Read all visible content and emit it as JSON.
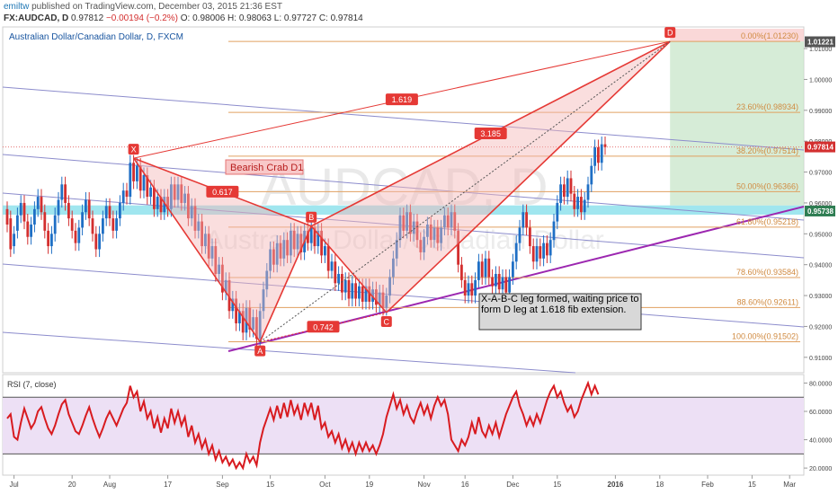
{
  "header": {
    "author": "emiltw",
    "published_text": "published on TradingView.com, December 03, 2015 21:36 EST",
    "symbol": "FX:AUDCAD, D",
    "last": "0.97812",
    "change": "−0.00194 (−0.2%)",
    "open": "O: 0.98006",
    "high": "H: 0.98063",
    "low": "L: 0.97727",
    "close": "C: 0.97814"
  },
  "colors": {
    "pattern": "#e53935",
    "fib": "#e0a060",
    "channel": "#8c8ccc",
    "trendline": "#9c27b0",
    "zone": "#80deea",
    "rsi": "#d81b20",
    "up_candle": "#1f6fc5",
    "down_candle": "#d32f2f"
  },
  "chart_data": [
    {
      "type": "candlestick",
      "title": "Australian Dollar/Canadian Dollar, D, FXCM",
      "watermark_symbol": "AUDCAD, D",
      "watermark_name": "Australian Dollar/Canadian Dollar",
      "ylim": [
        0.905,
        1.017
      ],
      "yticks": [
        "1.01000",
        "1.00000",
        "0.99000",
        "0.98000",
        "0.97000",
        "0.96000",
        "0.95000",
        "0.94000",
        "0.93000",
        "0.92000",
        "0.91000"
      ],
      "price_tags": [
        {
          "label": "1.01221",
          "value": 1.0122,
          "bg": "#555555"
        },
        {
          "label": "0.97814",
          "value": 0.97814,
          "bg": "#d32f2f"
        },
        {
          "label": "0.95738",
          "value": 0.95738,
          "bg": "#2e7d52"
        }
      ],
      "fib_levels": [
        {
          "label": "0.00%(1.01230)",
          "value": 1.0123
        },
        {
          "label": "23.60%(0.98934)",
          "value": 0.98934
        },
        {
          "label": "38.20%(0.97514)",
          "value": 0.97514
        },
        {
          "label": "50.00%(0.96366)",
          "value": 0.96366
        },
        {
          "label": "61.80%(0.95218)",
          "value": 0.95218
        },
        {
          "label": "78.60%(0.93584)",
          "value": 0.93584
        },
        {
          "label": "88.60%(0.92611)",
          "value": 0.92611
        },
        {
          "label": "100.00%(0.91502)",
          "value": 0.91502
        }
      ],
      "pattern_points": [
        {
          "label": "X",
          "day": 37,
          "value": 0.9745
        },
        {
          "label": "A",
          "day": 74,
          "value": 0.915
        },
        {
          "label": "B",
          "day": 89,
          "value": 0.9525
        },
        {
          "label": "C",
          "day": 111,
          "value": 0.9245
        },
        {
          "label": "D",
          "day": 194,
          "value": 1.0123
        }
      ],
      "ratio_labels": [
        "0.617",
        "0.742",
        "1.619",
        "3.185"
      ],
      "pattern_name": "Bearish Crab D1",
      "annotation": "X-A-B-C leg formed, waiting price to form D leg at 1.618 fib extension.",
      "support_zone": [
        0.9562,
        0.9592
      ],
      "candles": [
        [
          0.958,
          0.953
        ],
        [
          0.955,
          0.945
        ],
        [
          0.946,
          0.95
        ],
        [
          0.951,
          0.956
        ],
        [
          0.956,
          0.96
        ],
        [
          0.96,
          0.954
        ],
        [
          0.954,
          0.949
        ],
        [
          0.949,
          0.953
        ],
        [
          0.953,
          0.958
        ],
        [
          0.958,
          0.962
        ],
        [
          0.962,
          0.957
        ],
        [
          0.957,
          0.951
        ],
        [
          0.951,
          0.946
        ],
        [
          0.946,
          0.95
        ],
        [
          0.95,
          0.956
        ],
        [
          0.956,
          0.961
        ],
        [
          0.961,
          0.966
        ],
        [
          0.966,
          0.96
        ],
        [
          0.96,
          0.955
        ],
        [
          0.955,
          0.951
        ],
        [
          0.951,
          0.947
        ],
        [
          0.947,
          0.952
        ],
        [
          0.952,
          0.957
        ],
        [
          0.957,
          0.961
        ],
        [
          0.961,
          0.955
        ],
        [
          0.955,
          0.95
        ],
        [
          0.95,
          0.945
        ],
        [
          0.945,
          0.95
        ],
        [
          0.95,
          0.955
        ],
        [
          0.955,
          0.959
        ],
        [
          0.959,
          0.955
        ],
        [
          0.955,
          0.951
        ],
        [
          0.951,
          0.955
        ],
        [
          0.955,
          0.96
        ],
        [
          0.96,
          0.964
        ],
        [
          0.964,
          0.962
        ],
        [
          0.962,
          0.973
        ],
        [
          0.973,
          0.967
        ],
        [
          0.967,
          0.972
        ],
        [
          0.972,
          0.964
        ],
        [
          0.964,
          0.969
        ],
        [
          0.969,
          0.962
        ],
        [
          0.962,
          0.965
        ],
        [
          0.965,
          0.958
        ],
        [
          0.958,
          0.962
        ],
        [
          0.962,
          0.957
        ],
        [
          0.957,
          0.962
        ],
        [
          0.962,
          0.958
        ],
        [
          0.958,
          0.966
        ],
        [
          0.966,
          0.961
        ],
        [
          0.961,
          0.966
        ],
        [
          0.966,
          0.96
        ],
        [
          0.96,
          0.963
        ],
        [
          0.963,
          0.955
        ],
        [
          0.955,
          0.959
        ],
        [
          0.959,
          0.951
        ],
        [
          0.951,
          0.954
        ],
        [
          0.954,
          0.946
        ],
        [
          0.946,
          0.95
        ],
        [
          0.95,
          0.942
        ],
        [
          0.942,
          0.946
        ],
        [
          0.946,
          0.937
        ],
        [
          0.937,
          0.94
        ],
        [
          0.94,
          0.931
        ],
        [
          0.931,
          0.935
        ],
        [
          0.935,
          0.925
        ],
        [
          0.925,
          0.929
        ],
        [
          0.929,
          0.921
        ],
        [
          0.921,
          0.925
        ],
        [
          0.925,
          0.918
        ],
        [
          0.918,
          0.926
        ],
        [
          0.926,
          0.919
        ],
        [
          0.919,
          0.923
        ],
        [
          0.923,
          0.916
        ],
        [
          0.916,
          0.925
        ],
        [
          0.925,
          0.932
        ],
        [
          0.932,
          0.938
        ],
        [
          0.938,
          0.945
        ],
        [
          0.945,
          0.94
        ],
        [
          0.94,
          0.947
        ],
        [
          0.947,
          0.942
        ],
        [
          0.942,
          0.948
        ],
        [
          0.948,
          0.943
        ],
        [
          0.943,
          0.951
        ],
        [
          0.951,
          0.945
        ],
        [
          0.945,
          0.95
        ],
        [
          0.95,
          0.944
        ],
        [
          0.944,
          0.951
        ],
        [
          0.951,
          0.947
        ],
        [
          0.947,
          0.952
        ],
        [
          0.952,
          0.946
        ],
        [
          0.946,
          0.951
        ],
        [
          0.951,
          0.943
        ],
        [
          0.943,
          0.946
        ],
        [
          0.946,
          0.938
        ],
        [
          0.938,
          0.941
        ],
        [
          0.941,
          0.934
        ],
        [
          0.934,
          0.937
        ],
        [
          0.937,
          0.931
        ],
        [
          0.931,
          0.935
        ],
        [
          0.935,
          0.929
        ],
        [
          0.929,
          0.934
        ],
        [
          0.934,
          0.929
        ],
        [
          0.929,
          0.933
        ],
        [
          0.933,
          0.928
        ],
        [
          0.928,
          0.933
        ],
        [
          0.933,
          0.928
        ],
        [
          0.928,
          0.932
        ],
        [
          0.932,
          0.927
        ],
        [
          0.927,
          0.931
        ],
        [
          0.931,
          0.926
        ],
        [
          0.926,
          0.93
        ],
        [
          0.93,
          0.936
        ],
        [
          0.936,
          0.942
        ],
        [
          0.942,
          0.948
        ],
        [
          0.948,
          0.956
        ],
        [
          0.956,
          0.951
        ],
        [
          0.951,
          0.957
        ],
        [
          0.957,
          0.95
        ],
        [
          0.95,
          0.954
        ],
        [
          0.954,
          0.948
        ],
        [
          0.948,
          0.944
        ],
        [
          0.944,
          0.949
        ],
        [
          0.949,
          0.953
        ],
        [
          0.953,
          0.948
        ],
        [
          0.948,
          0.952
        ],
        [
          0.952,
          0.947
        ],
        [
          0.947,
          0.952
        ],
        [
          0.952,
          0.956
        ],
        [
          0.956,
          0.952
        ],
        [
          0.952,
          0.957
        ],
        [
          0.957,
          0.951
        ],
        [
          0.951,
          0.94
        ],
        [
          0.94,
          0.935
        ],
        [
          0.935,
          0.93
        ],
        [
          0.93,
          0.934
        ],
        [
          0.934,
          0.93
        ],
        [
          0.93,
          0.935
        ],
        [
          0.935,
          0.941
        ],
        [
          0.941,
          0.936
        ],
        [
          0.936,
          0.942
        ],
        [
          0.942,
          0.936
        ],
        [
          0.936,
          0.933
        ],
        [
          0.933,
          0.937
        ],
        [
          0.937,
          0.932
        ],
        [
          0.932,
          0.936
        ],
        [
          0.936,
          0.931
        ],
        [
          0.931,
          0.936
        ],
        [
          0.936,
          0.941
        ],
        [
          0.941,
          0.947
        ],
        [
          0.947,
          0.952
        ],
        [
          0.952,
          0.957
        ],
        [
          0.957,
          0.952
        ],
        [
          0.952,
          0.946
        ],
        [
          0.946,
          0.941
        ],
        [
          0.941,
          0.946
        ],
        [
          0.946,
          0.942
        ],
        [
          0.942,
          0.947
        ],
        [
          0.947,
          0.943
        ],
        [
          0.943,
          0.948
        ],
        [
          0.948,
          0.954
        ],
        [
          0.954,
          0.96
        ],
        [
          0.96,
          0.966
        ],
        [
          0.966,
          0.962
        ],
        [
          0.962,
          0.968
        ],
        [
          0.968,
          0.963
        ],
        [
          0.963,
          0.958
        ],
        [
          0.958,
          0.962
        ],
        [
          0.962,
          0.957
        ],
        [
          0.957,
          0.961
        ],
        [
          0.961,
          0.966
        ],
        [
          0.966,
          0.972
        ],
        [
          0.972,
          0.978
        ],
        [
          0.978,
          0.973
        ],
        [
          0.973,
          0.979
        ],
        [
          0.979,
          0.9781
        ]
      ],
      "x_labels": [
        {
          "label": "Jul",
          "day": 2
        },
        {
          "label": "20",
          "day": 19
        },
        {
          "label": "Aug",
          "day": 30
        },
        {
          "label": "17",
          "day": 47
        },
        {
          "label": "Sep",
          "day": 63
        },
        {
          "label": "15",
          "day": 77
        },
        {
          "label": "Oct",
          "day": 93
        },
        {
          "label": "19",
          "day": 106
        },
        {
          "label": "Nov",
          "day": 122
        },
        {
          "label": "16",
          "day": 134
        },
        {
          "label": "Dec",
          "day": 148
        },
        {
          "label": "15",
          "day": 161
        },
        {
          "label": "2016",
          "day": 178
        },
        {
          "label": "18",
          "day": 191
        },
        {
          "label": "Feb",
          "day": 205
        },
        {
          "label": "15",
          "day": 218
        },
        {
          "label": "Mar",
          "day": 229
        }
      ]
    },
    {
      "type": "line",
      "title": "RSI (7, close)",
      "ylim": [
        15,
        86
      ],
      "yticks": [
        "80.0000",
        "60.0000",
        "40.0000",
        "20.0000"
      ],
      "bands": [
        30,
        70
      ],
      "values": [
        55,
        58,
        42,
        40,
        52,
        62,
        55,
        48,
        52,
        60,
        63,
        55,
        48,
        44,
        50,
        58,
        65,
        68,
        58,
        52,
        46,
        44,
        50,
        57,
        63,
        55,
        48,
        42,
        48,
        55,
        60,
        55,
        50,
        56,
        62,
        66,
        78,
        70,
        74,
        60,
        67,
        55,
        60,
        48,
        56,
        45,
        55,
        48,
        62,
        52,
        60,
        50,
        56,
        42,
        50,
        38,
        44,
        34,
        40,
        30,
        36,
        26,
        32,
        24,
        28,
        22,
        26,
        20,
        24,
        20,
        30,
        24,
        28,
        22,
        38,
        48,
        55,
        62,
        54,
        64,
        55,
        66,
        56,
        68,
        58,
        64,
        54,
        66,
        58,
        66,
        54,
        64,
        48,
        52,
        42,
        46,
        38,
        44,
        34,
        40,
        32,
        38,
        30,
        38,
        32,
        38,
        32,
        36,
        30,
        36,
        44,
        56,
        64,
        72,
        62,
        68,
        58,
        64,
        56,
        52,
        60,
        66,
        58,
        64,
        55,
        64,
        70,
        64,
        68,
        58,
        40,
        36,
        32,
        40,
        36,
        42,
        52,
        44,
        56,
        46,
        42,
        50,
        44,
        52,
        42,
        50,
        58,
        64,
        70,
        74,
        64,
        58,
        50,
        56,
        50,
        58,
        52,
        60,
        68,
        74,
        78,
        70,
        74,
        66,
        60,
        64,
        56,
        60,
        68,
        74,
        80,
        72,
        78,
        72
      ]
    }
  ]
}
